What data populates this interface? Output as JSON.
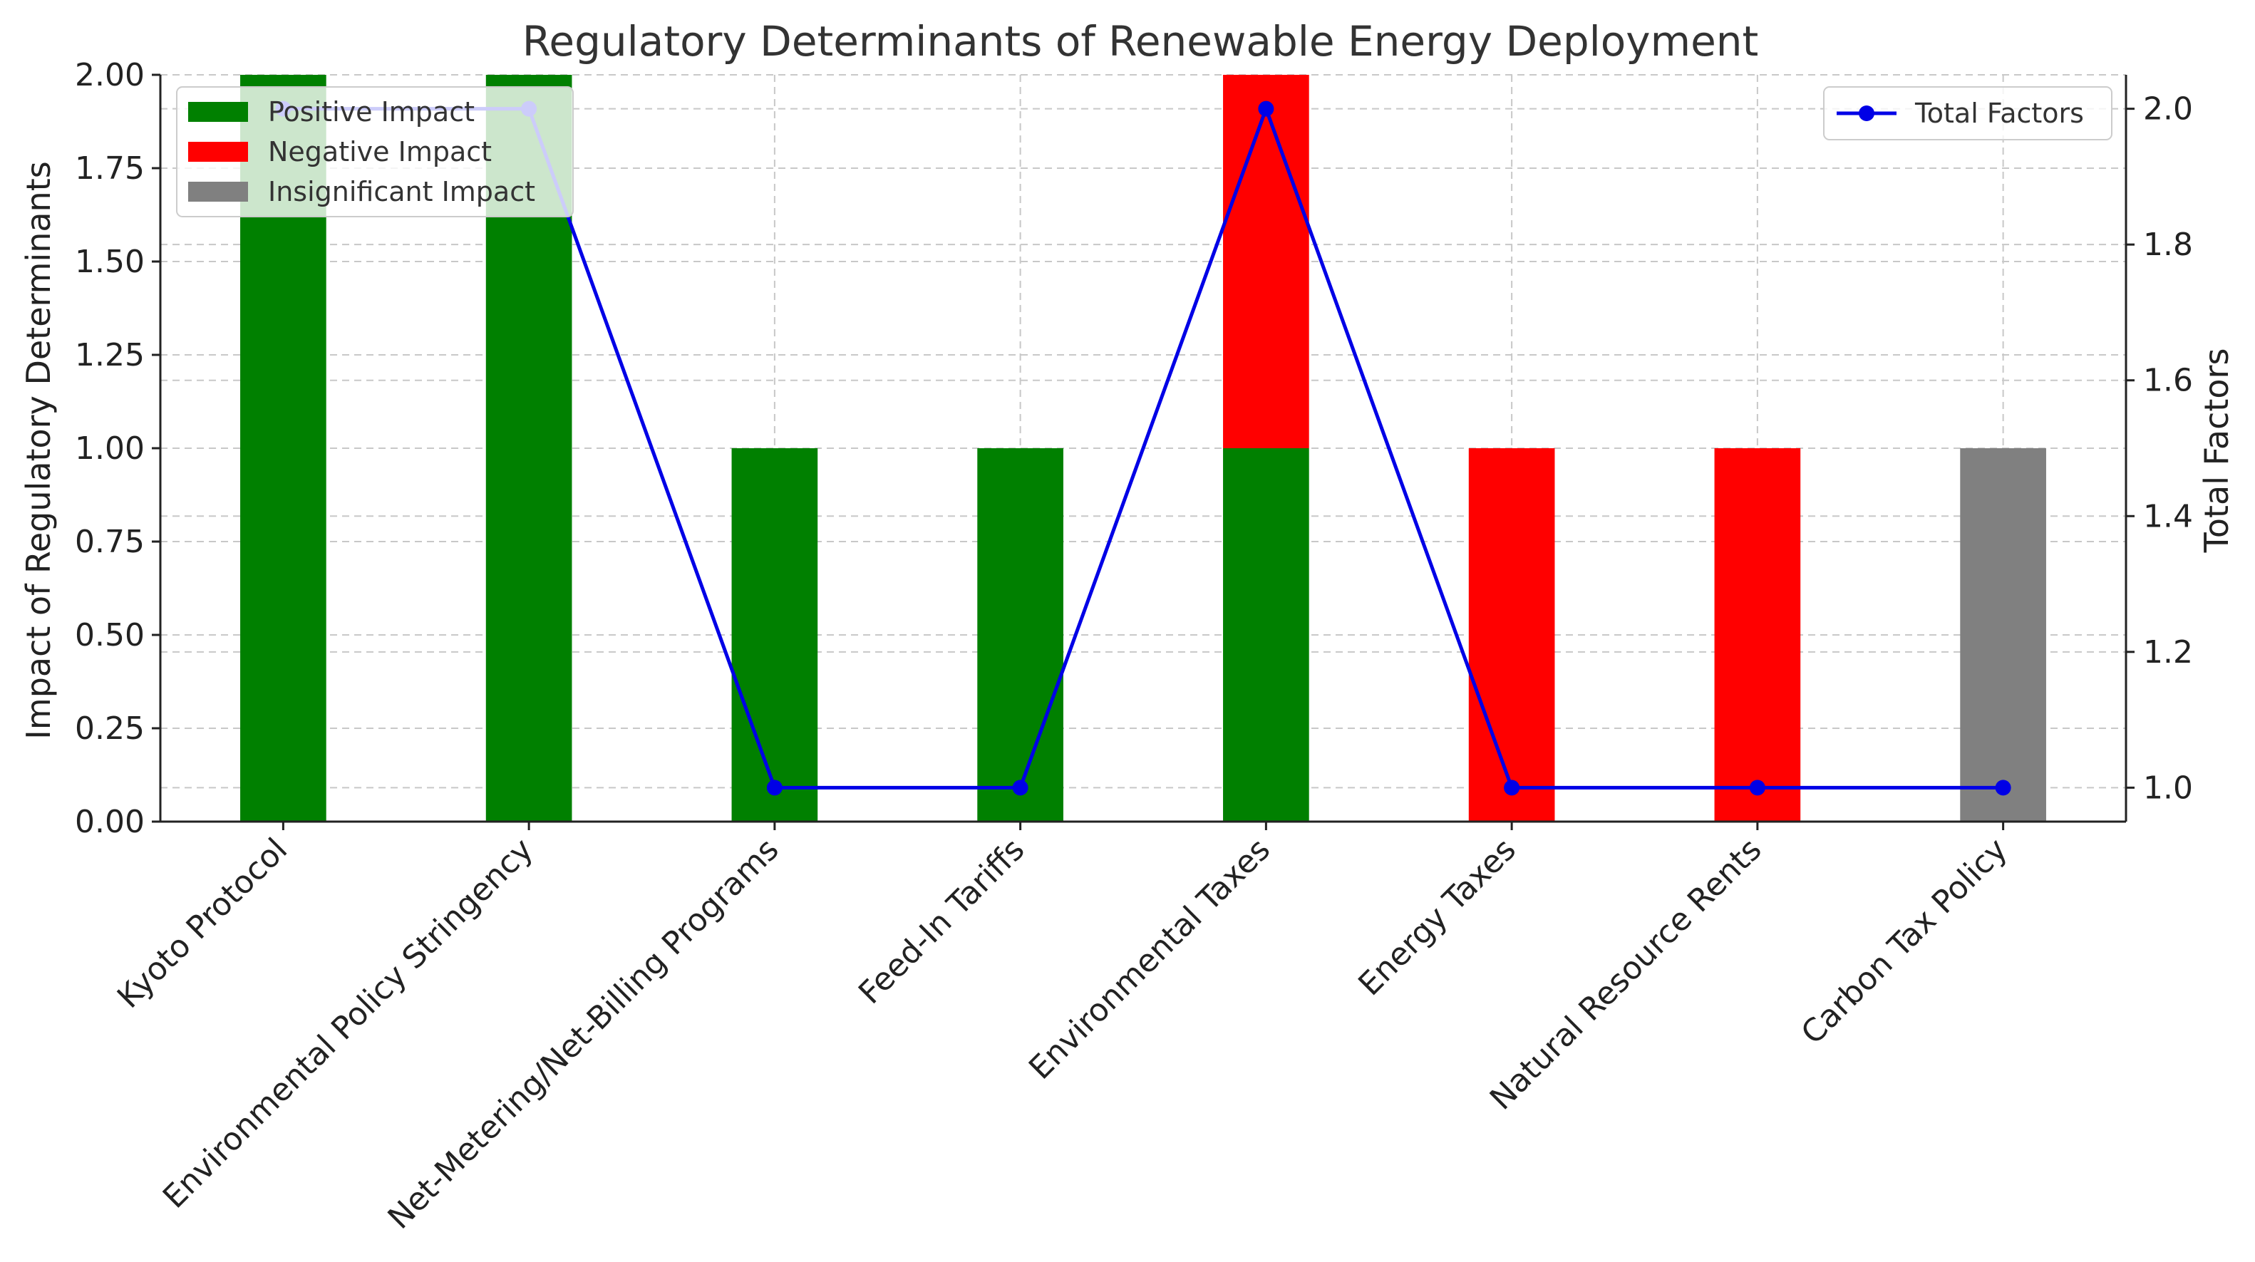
{
  "chart_data": {
    "type": "bar",
    "stacked": true,
    "title": "Regulatory Determinants of Renewable Energy Deployment",
    "categories": [
      "Kyoto Protocol",
      "Environmental Policy Stringency",
      "Net-Metering/Net-Billing Programs",
      "Feed-In Tariffs",
      "Environmental Taxes",
      "Energy Taxes",
      "Natural Resource Rents",
      "Carbon Tax Policy"
    ],
    "series": [
      {
        "name": "Positive Impact",
        "color": "#008000",
        "values": [
          2,
          2,
          1,
          1,
          1,
          0,
          0,
          0
        ]
      },
      {
        "name": "Negative Impact",
        "color": "#ff0000",
        "values": [
          0,
          0,
          0,
          0,
          1,
          1,
          1,
          0
        ]
      },
      {
        "name": "Insignificant Impact",
        "color": "#808080",
        "values": [
          0,
          0,
          0,
          0,
          0,
          0,
          0,
          1
        ]
      }
    ],
    "line_series": {
      "name": "Total Factors",
      "color": "#0000e6",
      "values": [
        2,
        2,
        1,
        1,
        2,
        1,
        1,
        1
      ]
    },
    "ylabel": "Impact of Regulatory Determinants",
    "ylim": [
      0,
      2
    ],
    "yticks": [
      "0.00",
      "0.25",
      "0.50",
      "0.75",
      "1.00",
      "1.25",
      "1.50",
      "1.75",
      "2.00"
    ],
    "y2label": "Total Factors",
    "y2lim": [
      0.95,
      2.05
    ],
    "y2ticks": [
      "1.0",
      "1.2",
      "1.4",
      "1.6",
      "1.8",
      "2.0"
    ],
    "grid": true,
    "legend_left_position": "upper-left",
    "legend_right_position": "upper-right"
  }
}
